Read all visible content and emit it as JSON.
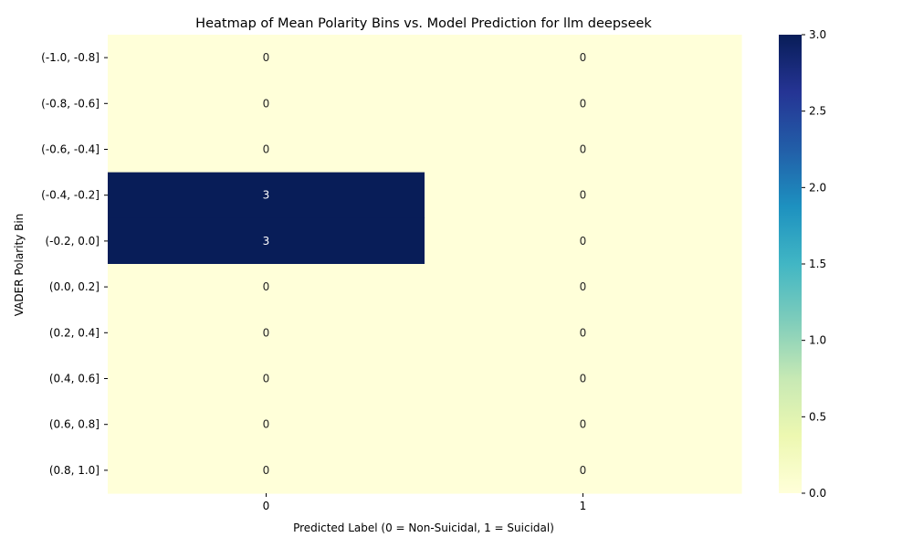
{
  "chart_data": {
    "type": "heatmap",
    "title": "Heatmap of Mean Polarity Bins vs. Model Prediction for llm deepseek",
    "xlabel": "Predicted Label (0 = Non-Suicidal, 1 = Suicidal)",
    "ylabel": "VADER Polarity Bin",
    "x_categories": [
      "0",
      "1"
    ],
    "y_categories": [
      "(-1.0, -0.8]",
      "(-0.8, -0.6]",
      "(-0.6, -0.4]",
      "(-0.4, -0.2]",
      "(-0.2, 0.0]",
      "(0.0, 0.2]",
      "(0.2, 0.4]",
      "(0.4, 0.6]",
      "(0.6, 0.8]",
      "(0.8, 1.0]"
    ],
    "values": [
      [
        0,
        0
      ],
      [
        0,
        0
      ],
      [
        0,
        0
      ],
      [
        3,
        0
      ],
      [
        3,
        0
      ],
      [
        0,
        0
      ],
      [
        0,
        0
      ],
      [
        0,
        0
      ],
      [
        0,
        0
      ],
      [
        0,
        0
      ]
    ],
    "colormap": "YlGnBu",
    "vmin": 0,
    "vmax": 3,
    "colorbar_ticks": [
      "0.0",
      "0.5",
      "1.0",
      "1.5",
      "2.0",
      "2.5",
      "3.0"
    ],
    "annotated": true
  }
}
